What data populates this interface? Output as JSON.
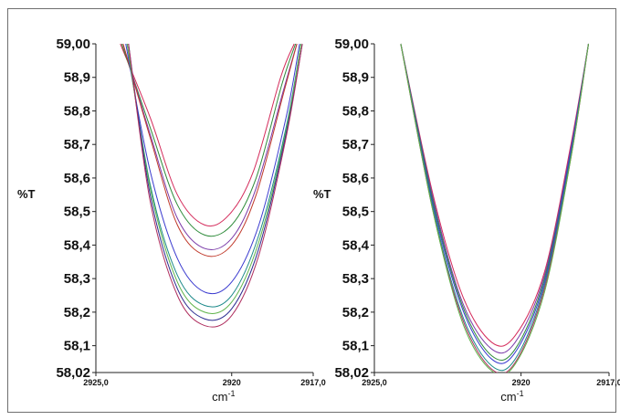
{
  "chart_data": [
    {
      "type": "line",
      "title": "",
      "ylabel": "%T",
      "xlabel": "cm-1",
      "xlabel_base": "cm",
      "xlabel_sup": "-1",
      "xlim": [
        2925.0,
        2917.0
      ],
      "ylim": [
        58.02,
        59.0
      ],
      "x_ticks": [
        2925.0,
        2920,
        2917.0
      ],
      "x_tick_labels": [
        "2925,0",
        "2920",
        "2917,0"
      ],
      "y_ticks": [
        59.0,
        58.9,
        58.8,
        58.7,
        58.6,
        58.5,
        58.4,
        58.3,
        58.2,
        58.1,
        58.02
      ],
      "y_tick_labels": [
        "59,00",
        "58,9",
        "58,8",
        "58,7",
        "58,6",
        "58,5",
        "58,4",
        "58,3",
        "58,2",
        "58,1",
        "58,02"
      ],
      "grid": false,
      "series": [
        {
          "color": "#d42b5b",
          "x": [
            2924.1,
            2923.0,
            2922.0,
            2921.0,
            2920.1,
            2919.2,
            2918.2,
            2917.7
          ],
          "values": [
            59.0,
            58.78,
            58.55,
            58.46,
            58.49,
            58.62,
            58.9,
            59.0
          ]
        },
        {
          "color": "#2e8b3a",
          "x": [
            2924.05,
            2923.0,
            2922.0,
            2921.0,
            2920.0,
            2919.1,
            2918.15,
            2917.65
          ],
          "values": [
            59.0,
            58.75,
            58.52,
            58.43,
            58.46,
            58.6,
            58.88,
            59.0
          ]
        },
        {
          "color": "#7a3aa8",
          "x": [
            2924.0,
            2923.0,
            2922.0,
            2921.0,
            2920.0,
            2919.1,
            2918.1,
            2917.6
          ],
          "values": [
            59.0,
            58.73,
            58.48,
            58.39,
            58.42,
            58.57,
            58.86,
            59.0
          ]
        },
        {
          "color": "#c0392b",
          "x": [
            2924.0,
            2923.0,
            2922.0,
            2921.0,
            2920.0,
            2919.1,
            2918.1,
            2917.6
          ],
          "values": [
            59.0,
            58.72,
            58.46,
            58.37,
            58.4,
            58.55,
            58.85,
            59.0
          ]
        },
        {
          "color": "#3a3acf",
          "x": [
            2923.9,
            2923.0,
            2922.0,
            2921.0,
            2920.0,
            2919.0,
            2918.0,
            2917.5
          ],
          "values": [
            59.0,
            58.62,
            58.36,
            58.26,
            58.29,
            58.46,
            58.78,
            59.0
          ]
        },
        {
          "color": "#1d8a8a",
          "x": [
            2923.85,
            2923.0,
            2922.0,
            2921.0,
            2920.0,
            2919.0,
            2918.0,
            2917.45
          ],
          "values": [
            59.0,
            58.58,
            58.31,
            58.22,
            58.25,
            58.43,
            58.75,
            59.0
          ]
        },
        {
          "color": "#5fb34a",
          "x": [
            2923.85,
            2923.0,
            2922.0,
            2921.0,
            2920.0,
            2919.0,
            2918.0,
            2917.45
          ],
          "values": [
            59.0,
            58.57,
            58.29,
            58.2,
            58.23,
            58.41,
            58.74,
            59.0
          ]
        },
        {
          "color": "#2b2b8f",
          "x": [
            2923.8,
            2923.0,
            2922.0,
            2921.0,
            2920.0,
            2919.0,
            2918.0,
            2917.4
          ],
          "values": [
            59.0,
            58.55,
            58.27,
            58.18,
            58.21,
            58.39,
            58.73,
            59.0
          ]
        },
        {
          "color": "#b03060",
          "x": [
            2923.8,
            2923.0,
            2922.0,
            2921.0,
            2920.0,
            2919.0,
            2918.0,
            2917.4
          ],
          "values": [
            59.0,
            58.53,
            58.25,
            58.16,
            58.19,
            58.37,
            58.72,
            59.0
          ]
        }
      ]
    },
    {
      "type": "line",
      "title": "",
      "ylabel": "%T",
      "xlabel": "cm-1",
      "xlabel_base": "cm",
      "xlabel_sup": "-1",
      "xlim": [
        2925.0,
        2917.0
      ],
      "ylim": [
        58.02,
        59.0
      ],
      "x_ticks": [
        2925.0,
        2920,
        2917.0
      ],
      "x_tick_labels": [
        "2925,0",
        "2920",
        "2917,0"
      ],
      "y_ticks": [
        59.0,
        58.9,
        58.8,
        58.7,
        58.6,
        58.5,
        58.4,
        58.3,
        58.2,
        58.1,
        58.02
      ],
      "y_tick_labels": [
        "59,00",
        "58,9",
        "58,8",
        "58,7",
        "58,6",
        "58,5",
        "58,4",
        "58,3",
        "58,2",
        "58,1",
        "58,02"
      ],
      "grid": false,
      "series": [
        {
          "color": "#d42b5b",
          "x": [
            2924.1,
            2923.0,
            2922.0,
            2921.0,
            2920.2,
            2919.2,
            2918.3,
            2917.7
          ],
          "values": [
            59.0,
            58.55,
            58.25,
            58.11,
            58.13,
            58.32,
            58.7,
            59.0
          ]
        },
        {
          "color": "#7a3aa8",
          "x": [
            2924.1,
            2923.0,
            2922.0,
            2921.0,
            2920.2,
            2919.2,
            2918.3,
            2917.7
          ],
          "values": [
            59.0,
            58.54,
            58.23,
            58.09,
            58.11,
            58.31,
            58.69,
            59.0
          ]
        },
        {
          "color": "#2e8b3a",
          "x": [
            2924.1,
            2923.0,
            2922.0,
            2921.0,
            2920.2,
            2919.2,
            2918.3,
            2917.7
          ],
          "values": [
            59.0,
            58.53,
            58.22,
            58.07,
            58.09,
            58.3,
            58.68,
            59.0
          ]
        },
        {
          "color": "#3a3acf",
          "x": [
            2924.1,
            2923.0,
            2922.0,
            2921.0,
            2920.2,
            2919.2,
            2918.3,
            2917.7
          ],
          "values": [
            59.0,
            58.52,
            58.21,
            58.06,
            58.08,
            58.29,
            58.68,
            59.0
          ]
        },
        {
          "color": "#1d8a8a",
          "x": [
            2924.1,
            2923.0,
            2922.0,
            2921.0,
            2920.2,
            2919.2,
            2918.3,
            2917.7
          ],
          "values": [
            59.0,
            58.51,
            58.19,
            58.04,
            58.06,
            58.28,
            58.67,
            59.0
          ]
        },
        {
          "color": "#b03060",
          "x": [
            2924.1,
            2923.0,
            2922.0,
            2921.0,
            2920.2,
            2919.2,
            2918.3,
            2917.7
          ],
          "values": [
            59.0,
            58.5,
            58.18,
            58.03,
            58.05,
            58.27,
            58.66,
            59.0
          ]
        },
        {
          "color": "#5fb34a",
          "x": [
            2924.1,
            2923.0,
            2922.0,
            2921.0,
            2920.2,
            2919.2,
            2918.3,
            2917.7
          ],
          "values": [
            59.0,
            58.5,
            58.17,
            58.025,
            58.045,
            58.26,
            58.66,
            59.0
          ]
        }
      ]
    }
  ]
}
